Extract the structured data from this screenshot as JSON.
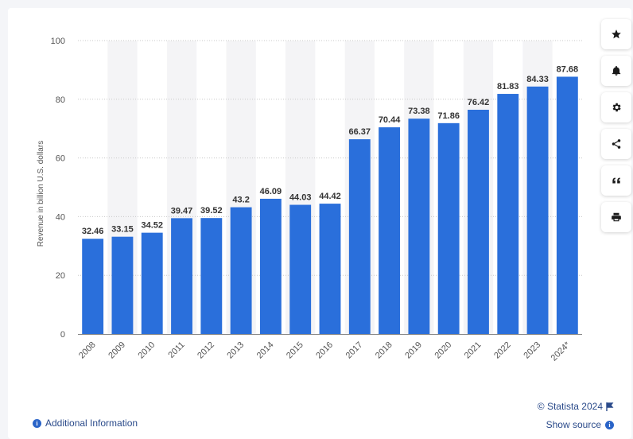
{
  "chart_data": {
    "type": "bar",
    "categories": [
      "2008",
      "2009",
      "2010",
      "2011",
      "2012",
      "2013",
      "2014",
      "2015",
      "2016",
      "2017",
      "2018",
      "2019",
      "2020",
      "2021",
      "2022",
      "2023",
      "2024*"
    ],
    "values": [
      32.46,
      33.15,
      34.52,
      39.47,
      39.52,
      43.2,
      46.09,
      44.03,
      44.42,
      66.37,
      70.44,
      73.38,
      71.86,
      76.42,
      81.83,
      84.33,
      87.68
    ],
    "value_labels": [
      "32.46",
      "33.15",
      "34.52",
      "39.47",
      "39.52",
      "43.2",
      "46.09",
      "44.03",
      "44.42",
      "66.37",
      "70.44",
      "73.38",
      "71.86",
      "76.42",
      "81.83",
      "84.33",
      "87.68"
    ],
    "ylabel": "Revenue in billion U.S. dollars",
    "xlabel": "",
    "ylim": [
      0,
      100
    ],
    "yticks": [
      "0",
      "20",
      "40",
      "60",
      "80",
      "100"
    ],
    "bar_color": "#2a6fdb",
    "grid": true
  },
  "toolbar": {
    "icons": [
      "star-icon",
      "bell-icon",
      "gear-icon",
      "share-icon",
      "quote-icon",
      "print-icon"
    ]
  },
  "footer": {
    "credit": "© Statista 2024",
    "show_source": "Show source",
    "additional_info": "Additional Information"
  }
}
